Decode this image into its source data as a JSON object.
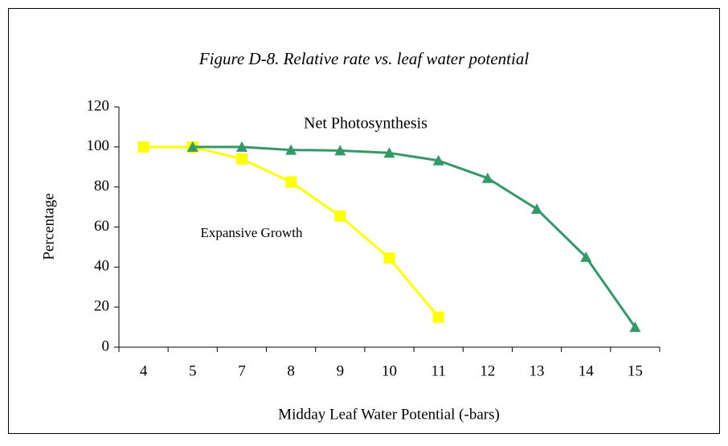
{
  "chart_data": {
    "type": "line",
    "title": "Figure D-8. Relative rate vs. leaf water potential",
    "x_label": "Midday Leaf Water Potential (-bars)",
    "y_label": "Percentage",
    "categories": [
      "4",
      "5",
      "7",
      "8",
      "9",
      "10",
      "11",
      "12",
      "13",
      "14",
      "15"
    ],
    "series": [
      {
        "name": "Expansive Growth",
        "color": "#ffff00",
        "marker": "square",
        "values": [
          100,
          100,
          94,
          82.5,
          65.5,
          44.5,
          15,
          null,
          null,
          null,
          null
        ]
      },
      {
        "name": "Net Photosynthesis",
        "color": "#339966",
        "marker": "triangle",
        "values": [
          null,
          100,
          100,
          98.5,
          98.2,
          97,
          93.2,
          84.4,
          69,
          45,
          10
        ]
      }
    ],
    "ylim": [
      0,
      120
    ],
    "yticks": [
      0,
      20,
      40,
      60,
      80,
      100,
      120
    ],
    "grid": false
  }
}
